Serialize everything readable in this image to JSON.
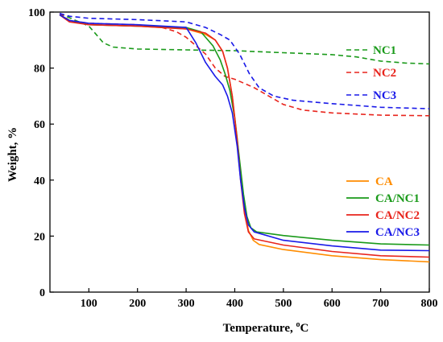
{
  "chart_data": {
    "type": "line",
    "xlabel": "Temperature, ",
    "xlabel_unit": "oC",
    "ylabel": "Weight, %",
    "xlim": [
      20,
      800
    ],
    "ylim": [
      0,
      100
    ],
    "xticks": [
      100,
      200,
      300,
      400,
      500,
      600,
      700,
      800
    ],
    "yticks": [
      0,
      20,
      40,
      60,
      80,
      100
    ],
    "grid": false,
    "series": [
      {
        "name": "NC1",
        "color": "#1a9a1a",
        "dash": true,
        "legend_group": "top",
        "points": [
          [
            40,
            99.5
          ],
          [
            60,
            98
          ],
          [
            80,
            96.5
          ],
          [
            100,
            95
          ],
          [
            115,
            92
          ],
          [
            130,
            89
          ],
          [
            150,
            87.5
          ],
          [
            200,
            86.8
          ],
          [
            300,
            86.5
          ],
          [
            400,
            86.2
          ],
          [
            500,
            85.5
          ],
          [
            600,
            84.8
          ],
          [
            650,
            84
          ],
          [
            700,
            82.5
          ],
          [
            750,
            81.8
          ],
          [
            800,
            81.5
          ]
        ]
      },
      {
        "name": "NC2",
        "color": "#e8241c",
        "dash": true,
        "legend_group": "top",
        "points": [
          [
            40,
            99.5
          ],
          [
            60,
            97
          ],
          [
            100,
            96
          ],
          [
            200,
            95.5
          ],
          [
            250,
            94.5
          ],
          [
            280,
            93
          ],
          [
            300,
            91
          ],
          [
            320,
            88
          ],
          [
            340,
            85
          ],
          [
            360,
            80
          ],
          [
            380,
            77
          ],
          [
            400,
            76
          ],
          [
            420,
            74.5
          ],
          [
            440,
            73
          ],
          [
            460,
            71
          ],
          [
            480,
            69
          ],
          [
            500,
            67
          ],
          [
            540,
            65
          ],
          [
            600,
            64
          ],
          [
            700,
            63.2
          ],
          [
            800,
            63
          ]
        ]
      },
      {
        "name": "NC3",
        "color": "#1a1ae8",
        "dash": true,
        "legend_group": "top",
        "points": [
          [
            40,
            99.5
          ],
          [
            60,
            98.5
          ],
          [
            100,
            97.8
          ],
          [
            200,
            97.3
          ],
          [
            300,
            96.5
          ],
          [
            340,
            94.5
          ],
          [
            370,
            92
          ],
          [
            390,
            90
          ],
          [
            410,
            85
          ],
          [
            430,
            78
          ],
          [
            450,
            73
          ],
          [
            480,
            70
          ],
          [
            520,
            68.5
          ],
          [
            600,
            67.3
          ],
          [
            700,
            66
          ],
          [
            800,
            65.5
          ]
        ]
      },
      {
        "name": "CA",
        "color": "#ff8c00",
        "dash": false,
        "legend_group": "bottom",
        "points": [
          [
            40,
            99
          ],
          [
            60,
            97
          ],
          [
            100,
            95.5
          ],
          [
            200,
            95
          ],
          [
            300,
            94
          ],
          [
            340,
            92
          ],
          [
            360,
            90
          ],
          [
            375,
            86
          ],
          [
            385,
            80
          ],
          [
            395,
            70
          ],
          [
            405,
            55
          ],
          [
            412,
            42
          ],
          [
            420,
            30
          ],
          [
            428,
            22
          ],
          [
            438,
            18.5
          ],
          [
            450,
            17
          ],
          [
            500,
            15.2
          ],
          [
            600,
            13
          ],
          [
            700,
            11.6
          ],
          [
            800,
            10.8
          ]
        ]
      },
      {
        "name": "CA/NC1",
        "color": "#1a9a1a",
        "dash": false,
        "legend_group": "bottom",
        "points": [
          [
            40,
            99
          ],
          [
            60,
            97
          ],
          [
            100,
            95.5
          ],
          [
            200,
            95
          ],
          [
            300,
            94.5
          ],
          [
            330,
            93
          ],
          [
            355,
            88
          ],
          [
            370,
            83
          ],
          [
            380,
            78
          ],
          [
            390,
            72
          ],
          [
            400,
            62
          ],
          [
            410,
            47
          ],
          [
            418,
            35
          ],
          [
            425,
            27
          ],
          [
            433,
            23
          ],
          [
            445,
            21.5
          ],
          [
            500,
            20.2
          ],
          [
            600,
            18.5
          ],
          [
            700,
            17.2
          ],
          [
            800,
            16.8
          ]
        ]
      },
      {
        "name": "CA/NC2",
        "color": "#e8241c",
        "dash": false,
        "legend_group": "bottom",
        "points": [
          [
            40,
            99
          ],
          [
            60,
            96.5
          ],
          [
            100,
            95.5
          ],
          [
            200,
            95
          ],
          [
            300,
            94
          ],
          [
            340,
            92.5
          ],
          [
            360,
            90
          ],
          [
            375,
            86
          ],
          [
            385,
            80
          ],
          [
            395,
            70
          ],
          [
            405,
            54
          ],
          [
            412,
            40
          ],
          [
            420,
            28
          ],
          [
            428,
            21.5
          ],
          [
            440,
            19
          ],
          [
            500,
            16.8
          ],
          [
            600,
            14.5
          ],
          [
            700,
            13
          ],
          [
            800,
            12.5
          ]
        ]
      },
      {
        "name": "CA/NC3",
        "color": "#1a1ae8",
        "dash": false,
        "legend_group": "bottom",
        "points": [
          [
            40,
            99
          ],
          [
            60,
            97
          ],
          [
            100,
            96
          ],
          [
            200,
            95.5
          ],
          [
            300,
            94.5
          ],
          [
            320,
            89
          ],
          [
            340,
            82
          ],
          [
            360,
            77
          ],
          [
            375,
            74
          ],
          [
            385,
            70
          ],
          [
            395,
            64
          ],
          [
            405,
            52
          ],
          [
            412,
            40
          ],
          [
            420,
            30
          ],
          [
            428,
            24
          ],
          [
            440,
            21.5
          ],
          [
            500,
            18.5
          ],
          [
            600,
            16.5
          ],
          [
            700,
            15
          ],
          [
            800,
            14.8
          ]
        ]
      }
    ]
  }
}
